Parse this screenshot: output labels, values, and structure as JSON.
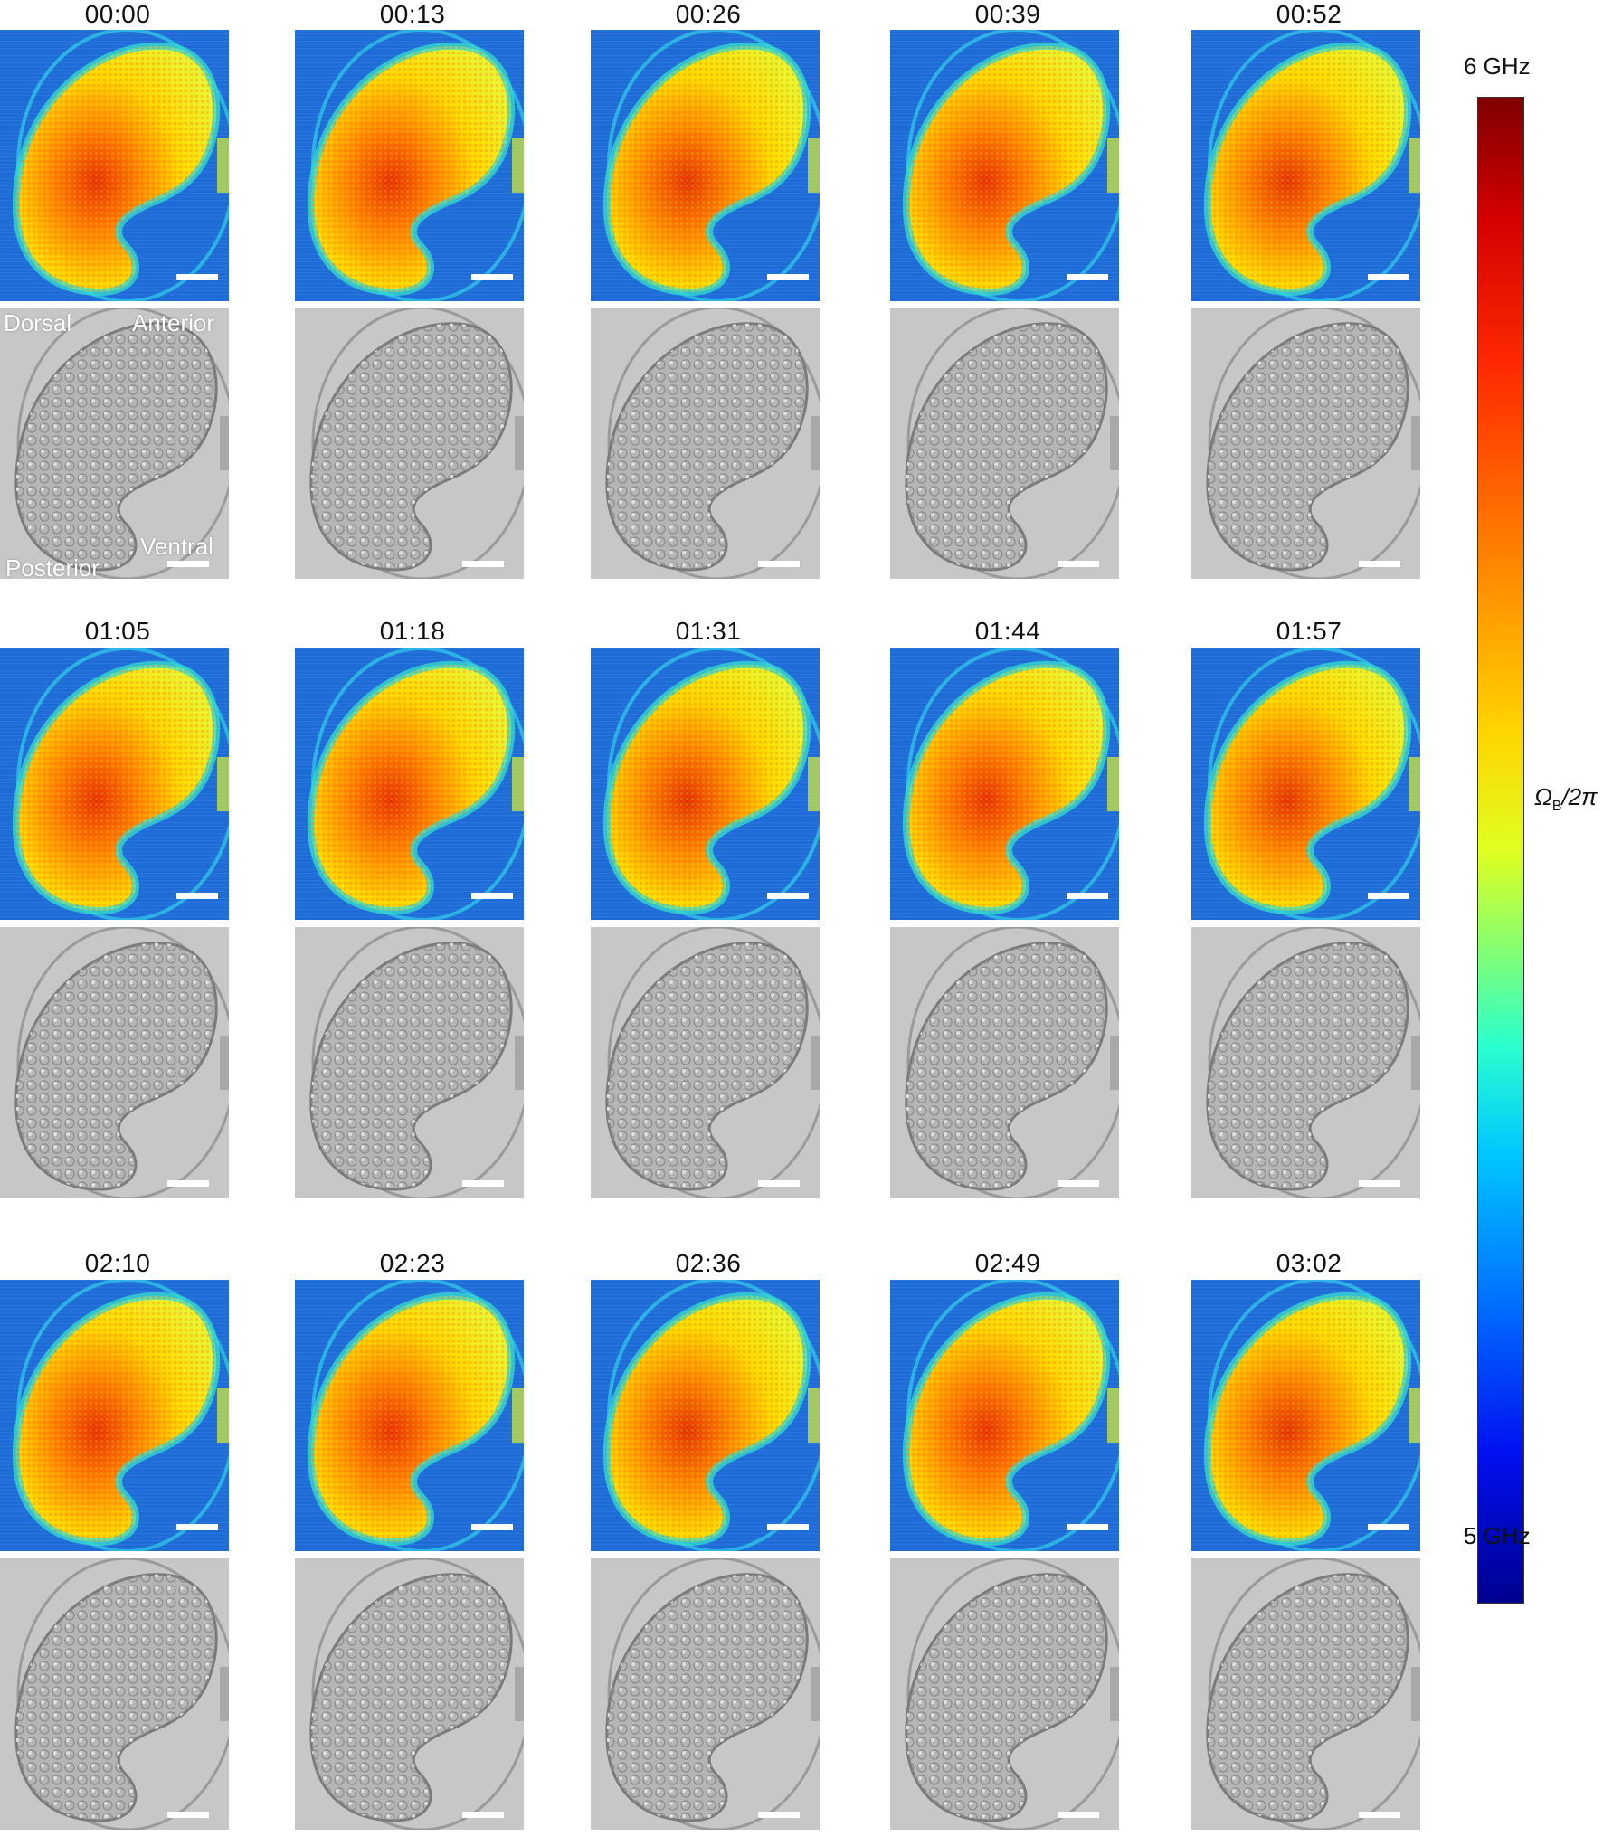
{
  "time_labels": [
    "00:00",
    "00:13",
    "00:26",
    "00:39",
    "00:52",
    "01:05",
    "01:18",
    "01:31",
    "01:44",
    "01:57",
    "02:10",
    "02:23",
    "02:36",
    "02:49",
    "03:02"
  ],
  "orientation_labels": {
    "dorsal": "Dorsal",
    "anterior": "Anterior",
    "posterior": "Posterior",
    "ventral": "Ventral"
  },
  "colorbar": {
    "max_label": "6 GHz",
    "min_label": "5 GHz",
    "axis_label": "Ω",
    "axis_label_sub": "B",
    "axis_label_suffix": "/2π",
    "colors": [
      "#7f0000",
      "#ff2a00",
      "#ffd400",
      "#2affcd",
      "#0070ff",
      "#00008f"
    ]
  }
}
